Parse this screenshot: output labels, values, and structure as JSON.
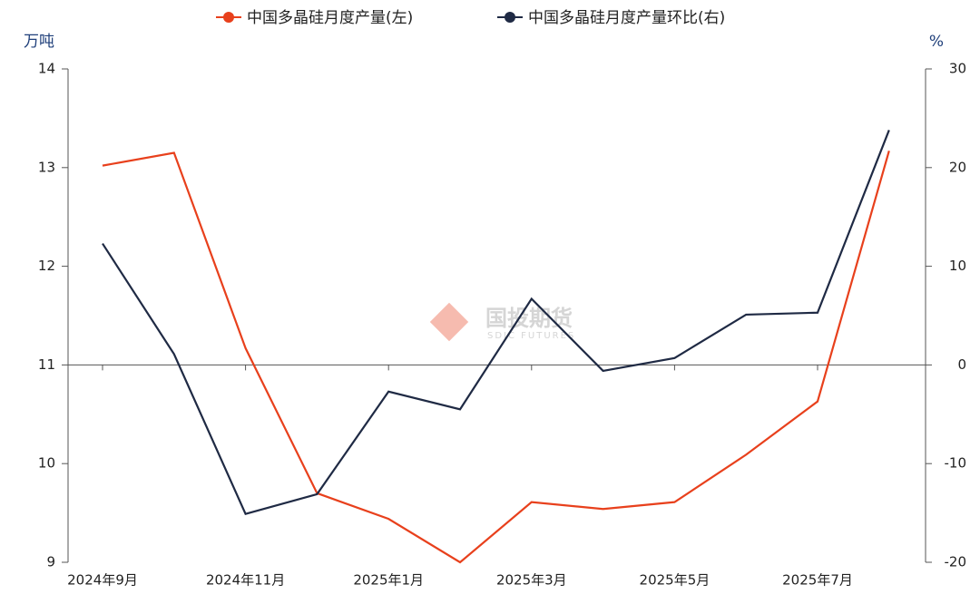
{
  "chart_data": {
    "type": "line",
    "legend_position": "top",
    "y_unit": "万吨",
    "y2_unit": "%",
    "watermark": "国投期货",
    "watermark_sub": "SDIC FUTURES",
    "categories": [
      "2024年9月",
      null,
      "2024年11月",
      null,
      "2025年1月",
      null,
      "2025年3月",
      null,
      "2025年5月",
      null,
      "2025年7月",
      null
    ],
    "series": [
      {
        "name": "中国多晶硅月度产量(左)",
        "color": "#e8401c",
        "values": [
          13.02,
          13.15,
          11.17,
          9.7,
          9.44,
          9.0,
          9.61,
          9.54,
          9.61,
          10.09,
          10.63,
          13.17
        ]
      },
      {
        "name": "中国多晶硅月度产量环比(右)",
        "color": "#1f2a44",
        "axis": "y2",
        "values": [
          12.3,
          1.1,
          -15.1,
          -13.1,
          -2.7,
          -4.5,
          6.7,
          -0.6,
          0.7,
          5.1,
          5.3,
          23.8
        ]
      }
    ],
    "ylim": [
      9,
      14
    ],
    "yticks": [
      9,
      10,
      11,
      12,
      13,
      14
    ],
    "y2lim": [
      -20,
      30
    ],
    "y2ticks": [
      -20,
      -10,
      0,
      10,
      20,
      30
    ]
  }
}
